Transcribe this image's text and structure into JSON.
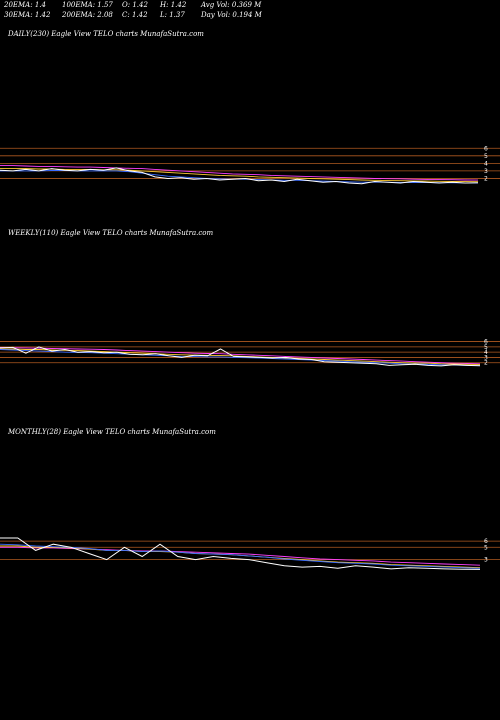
{
  "header": {
    "row1": [
      {
        "text": "20EMA: 1.4"
      },
      {
        "text": "100EMA: 1.57"
      },
      {
        "text": "O: 1.42"
      },
      {
        "text": "H: 1.42"
      },
      {
        "text": "Avg Vol: 0.369  M"
      }
    ],
    "row2": [
      {
        "text": "30EMA: 1.42"
      },
      {
        "text": "200EMA: 2.08"
      },
      {
        "text": "C: 1.42"
      },
      {
        "text": "L: 1.37"
      },
      {
        "text": "Day Vol: 0.194  M"
      }
    ]
  },
  "chart_data": [
    {
      "type": "line",
      "title": "DAILY(230) Eagle   View  TELO charts MunafaSutra.com",
      "y_tick_labels": [
        "6",
        "5",
        "4",
        "3",
        "2"
      ],
      "y_ticks": [
        6,
        5,
        4,
        3,
        2
      ],
      "ylim": [
        1,
        6.3
      ],
      "colors": {
        "price": "#ffffff",
        "ema_short": "#3a6cff",
        "ema_long": "#ff40ff",
        "ema_mid": "#ffcc33",
        "levels": "#b05a20"
      },
      "series": [
        {
          "key": "price",
          "values": [
            3.1,
            3.0,
            3.2,
            3.0,
            3.3,
            3.1,
            3.0,
            3.2,
            3.1,
            3.4,
            3.0,
            2.8,
            2.2,
            2.0,
            2.1,
            1.9,
            2.0,
            1.8,
            1.9,
            2.0,
            1.7,
            1.8,
            1.6,
            1.9,
            1.7,
            1.5,
            1.6,
            1.4,
            1.3,
            1.6,
            1.5,
            1.4,
            1.6,
            1.5,
            1.4,
            1.5,
            1.4,
            1.42
          ]
        },
        {
          "key": "ema_short",
          "values": [
            3.0,
            3.0,
            3.0,
            3.0,
            3.05,
            3.05,
            3.0,
            3.0,
            3.0,
            3.0,
            2.9,
            2.7,
            2.5,
            2.3,
            2.2,
            2.1,
            2.0,
            1.95,
            1.9,
            1.9,
            1.85,
            1.8,
            1.75,
            1.75,
            1.7,
            1.65,
            1.6,
            1.55,
            1.5,
            1.5,
            1.5,
            1.48,
            1.47,
            1.46,
            1.44,
            1.43,
            1.41,
            1.4
          ]
        },
        {
          "key": "ema_long",
          "values": [
            3.7,
            3.7,
            3.65,
            3.6,
            3.6,
            3.55,
            3.5,
            3.5,
            3.45,
            3.4,
            3.35,
            3.3,
            3.2,
            3.1,
            3.0,
            2.9,
            2.8,
            2.7,
            2.6,
            2.55,
            2.5,
            2.4,
            2.35,
            2.3,
            2.25,
            2.2,
            2.15,
            2.1,
            2.05,
            2.0,
            1.97,
            1.95,
            1.9,
            1.88,
            1.85,
            1.83,
            1.8,
            1.78
          ]
        },
        {
          "key": "ema_mid",
          "values": [
            3.3,
            3.3,
            3.3,
            3.25,
            3.25,
            3.2,
            3.2,
            3.2,
            3.15,
            3.15,
            3.1,
            3.0,
            2.9,
            2.8,
            2.7,
            2.6,
            2.5,
            2.4,
            2.35,
            2.3,
            2.2,
            2.15,
            2.1,
            2.05,
            2.0,
            1.95,
            1.9,
            1.85,
            1.8,
            1.75,
            1.72,
            1.7,
            1.68,
            1.65,
            1.62,
            1.6,
            1.58,
            1.57
          ]
        }
      ]
    },
    {
      "type": "line",
      "title": "WEEKLY(110) Eagle   View  TELO charts MunafaSutra.com",
      "y_tick_labels": [
        "6",
        "5",
        "4",
        "3",
        "2"
      ],
      "y_ticks": [
        6,
        5,
        4,
        3,
        2
      ],
      "ylim": [
        1,
        6.3
      ],
      "colors": {
        "price": "#ffffff",
        "ema_short": "#3a6cff",
        "ema_long": "#ff40ff",
        "ema_mid": "#ffcc33",
        "levels": "#b05a20"
      },
      "series": [
        {
          "key": "price",
          "values": [
            4.8,
            4.9,
            3.8,
            5.0,
            4.2,
            4.5,
            4.0,
            4.1,
            3.9,
            4.0,
            3.6,
            3.5,
            3.7,
            3.3,
            3.0,
            3.4,
            3.3,
            4.6,
            3.2,
            3.1,
            3.0,
            2.9,
            3.0,
            2.7,
            2.6,
            2.2,
            2.1,
            2.0,
            1.9,
            1.8,
            1.5,
            1.6,
            1.7,
            1.5,
            1.4,
            1.6,
            1.5,
            1.42
          ]
        },
        {
          "key": "ema_short",
          "values": [
            4.5,
            4.4,
            4.3,
            4.2,
            4.1,
            4.0,
            3.95,
            3.9,
            3.8,
            3.7,
            3.6,
            3.5,
            3.4,
            3.3,
            3.2,
            3.15,
            3.1,
            3.1,
            3.0,
            2.95,
            2.9,
            2.8,
            2.7,
            2.6,
            2.5,
            2.4,
            2.3,
            2.2,
            2.1,
            2.0,
            1.9,
            1.8,
            1.75,
            1.7,
            1.6,
            1.55,
            1.5,
            1.45
          ]
        },
        {
          "key": "ema_long",
          "values": [
            4.9,
            4.85,
            4.8,
            4.75,
            4.7,
            4.65,
            4.6,
            4.55,
            4.5,
            4.4,
            4.3,
            4.2,
            4.1,
            4.0,
            3.9,
            3.8,
            3.75,
            3.7,
            3.6,
            3.5,
            3.4,
            3.3,
            3.2,
            3.1,
            3.0,
            2.9,
            2.8,
            2.7,
            2.6,
            2.5,
            2.4,
            2.3,
            2.2,
            2.1,
            2.0,
            1.9,
            1.85,
            1.8
          ]
        },
        {
          "key": "ema_mid",
          "values": [
            4.6,
            4.6,
            4.5,
            4.5,
            4.4,
            4.35,
            4.3,
            4.2,
            4.1,
            4.0,
            3.9,
            3.8,
            3.7,
            3.6,
            3.5,
            3.45,
            3.4,
            3.35,
            3.3,
            3.2,
            3.1,
            3.0,
            2.9,
            2.8,
            2.7,
            2.6,
            2.5,
            2.4,
            2.3,
            2.2,
            2.1,
            2.0,
            1.95,
            1.9,
            1.8,
            1.75,
            1.7,
            1.65
          ]
        }
      ]
    },
    {
      "type": "line",
      "title": "MONTHLY(28) Eagle   View  TELO charts MunafaSutra.com",
      "y_tick_labels": [
        "6",
        "5",
        "3"
      ],
      "y_ticks": [
        6,
        5,
        3
      ],
      "ylim": [
        1,
        6.5
      ],
      "colors": {
        "price": "#ffffff",
        "ema_short": "#3a6cff",
        "ema_long": "#ff40ff",
        "ema_mid": "#ffcc33",
        "levels": "#b05a20"
      },
      "series": [
        {
          "key": "price",
          "values": [
            6.5,
            6.5,
            4.5,
            5.5,
            5.0,
            4.0,
            3.0,
            5.0,
            3.5,
            5.5,
            3.5,
            3.0,
            3.5,
            3.2,
            3.0,
            2.5,
            2.0,
            1.8,
            1.9,
            1.6,
            2.0,
            1.8,
            1.5,
            1.7,
            1.6,
            1.5,
            1.45,
            1.42
          ]
        },
        {
          "key": "ema_short",
          "values": [
            5.5,
            5.4,
            5.2,
            5.1,
            5.0,
            4.8,
            4.5,
            4.5,
            4.3,
            4.4,
            4.2,
            4.0,
            3.9,
            3.8,
            3.6,
            3.4,
            3.1,
            2.9,
            2.7,
            2.5,
            2.4,
            2.3,
            2.1,
            2.0,
            1.9,
            1.8,
            1.7,
            1.6
          ]
        },
        {
          "key": "ema_long",
          "values": [
            5.0,
            5.0,
            4.9,
            4.9,
            4.8,
            4.7,
            4.6,
            4.5,
            4.4,
            4.4,
            4.3,
            4.2,
            4.1,
            4.0,
            3.9,
            3.7,
            3.5,
            3.3,
            3.1,
            3.0,
            2.9,
            2.8,
            2.6,
            2.5,
            2.4,
            2.3,
            2.2,
            2.1
          ]
        },
        {
          "key": "ema_mid",
          "values": [
            5.2,
            5.2,
            5.0,
            5.0,
            4.9,
            4.7,
            4.5,
            4.5,
            4.3,
            4.3,
            4.2,
            4.0,
            3.9,
            3.8,
            3.6,
            3.4,
            3.2,
            3.0,
            2.8,
            2.6,
            2.5,
            2.4,
            2.2,
            2.1,
            2.0,
            1.9,
            1.8,
            1.7
          ]
        }
      ]
    }
  ]
}
